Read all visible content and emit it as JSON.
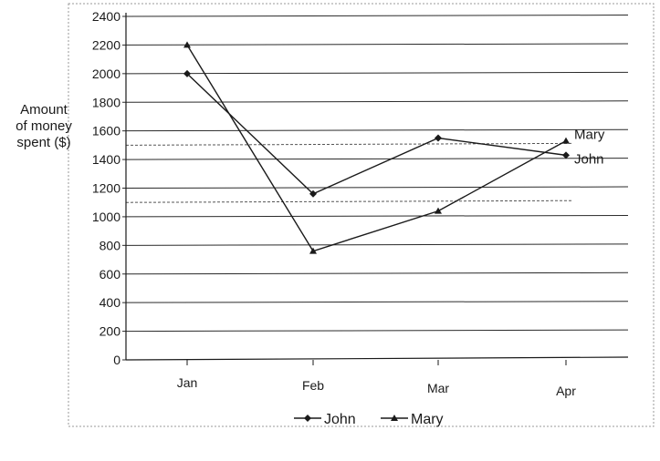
{
  "chart_data": {
    "type": "line",
    "title": "",
    "xlabel": "",
    "ylabel": [
      "Amount",
      "of money",
      "spent ($)"
    ],
    "categories": [
      "Jan",
      "Feb",
      "Mar",
      "Apr"
    ],
    "yticks": [
      "0",
      "200",
      "400",
      "600",
      "800",
      "1000",
      "1200",
      "1400",
      "1600",
      "1800",
      "2000",
      "2200",
      "2400"
    ],
    "ylim": [
      0,
      2400
    ],
    "grid": true,
    "legend_position": "bottom",
    "series": [
      {
        "name": "John",
        "values": [
          2000,
          1160,
          1550,
          1430
        ],
        "marker": "diamond",
        "color": "#1a1a1a"
      },
      {
        "name": "Mary",
        "values": [
          2200,
          760,
          1040,
          1530
        ],
        "marker": "triangle",
        "color": "#1a1a1a"
      }
    ],
    "dashed_reference_values": [
      1500,
      1100
    ]
  }
}
